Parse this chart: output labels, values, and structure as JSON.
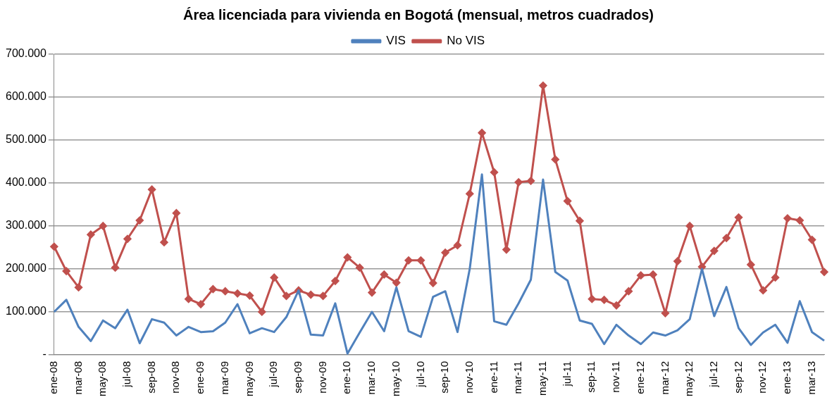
{
  "chart_data": {
    "type": "line",
    "title": "Área licenciada para vivienda en Bogotá (mensual, metros cuadrados)",
    "categories": [
      "ene-08",
      null,
      "mar-08",
      null,
      "may-08",
      null,
      "jul-08",
      null,
      "sep-08",
      null,
      "nov-08",
      null,
      "ene-09",
      null,
      "mar-09",
      null,
      "may-09",
      null,
      "jul-09",
      null,
      "sep-09",
      null,
      "nov-09",
      null,
      "ene-10",
      null,
      "mar-10",
      null,
      "may-10",
      null,
      "jul-10",
      null,
      "sep-10",
      null,
      "nov-10",
      null,
      "ene-11",
      null,
      "mar-11",
      null,
      "may-11",
      null,
      "jul-11",
      null,
      "sep-11",
      null,
      "nov-11",
      null,
      "ene-12",
      null,
      "mar-12",
      null,
      "may-12",
      null,
      "jul-12",
      null,
      "sep-12",
      null,
      "nov-12",
      null,
      "ene-13",
      null,
      "mar-13",
      null
    ],
    "series": [
      {
        "name": "VIS",
        "color": "#4f81bd",
        "marker": "none",
        "values": [
          100000,
          128000,
          65000,
          32000,
          80000,
          62000,
          105000,
          27000,
          83000,
          75000,
          45000,
          65000,
          53000,
          55000,
          75000,
          118000,
          50000,
          62000,
          53000,
          88000,
          150000,
          47000,
          45000,
          120000,
          3000,
          52000,
          100000,
          55000,
          157000,
          55000,
          42000,
          135000,
          148000,
          53000,
          200000,
          420000,
          78000,
          70000,
          120000,
          175000,
          408000,
          193000,
          173000,
          80000,
          72000,
          25000,
          70000,
          45000,
          25000,
          52000,
          45000,
          57000,
          83000,
          200000,
          90000,
          158000,
          62000,
          23000,
          52000,
          70000,
          28000,
          125000,
          53000,
          33000
        ]
      },
      {
        "name": "No VIS",
        "color": "#c0504d",
        "marker": "diamond",
        "values": [
          252000,
          195000,
          157000,
          280000,
          300000,
          203000,
          270000,
          313000,
          385000,
          262000,
          330000,
          130000,
          118000,
          153000,
          148000,
          143000,
          138000,
          100000,
          180000,
          137000,
          150000,
          140000,
          137000,
          172000,
          227000,
          203000,
          145000,
          187000,
          168000,
          220000,
          220000,
          167000,
          238000,
          255000,
          375000,
          517000,
          425000,
          245000,
          402000,
          405000,
          627000,
          455000,
          358000,
          312000,
          130000,
          128000,
          115000,
          148000,
          185000,
          187000,
          97000,
          218000,
          300000,
          205000,
          242000,
          272000,
          320000,
          210000,
          150000,
          180000,
          318000,
          313000,
          268000,
          193000
        ]
      }
    ],
    "ylim": [
      0,
      700000
    ],
    "yticks": [
      {
        "value": 0,
        "label": "-"
      },
      {
        "value": 100000,
        "label": "100.000"
      },
      {
        "value": 200000,
        "label": "200.000"
      },
      {
        "value": 300000,
        "label": "300.000"
      },
      {
        "value": 400000,
        "label": "400.000"
      },
      {
        "value": 500000,
        "label": "500.000"
      },
      {
        "value": 600000,
        "label": "600.000"
      },
      {
        "value": 700000,
        "label": "700.000"
      }
    ],
    "grid": "y",
    "legend": "top",
    "line_style": "solid"
  }
}
